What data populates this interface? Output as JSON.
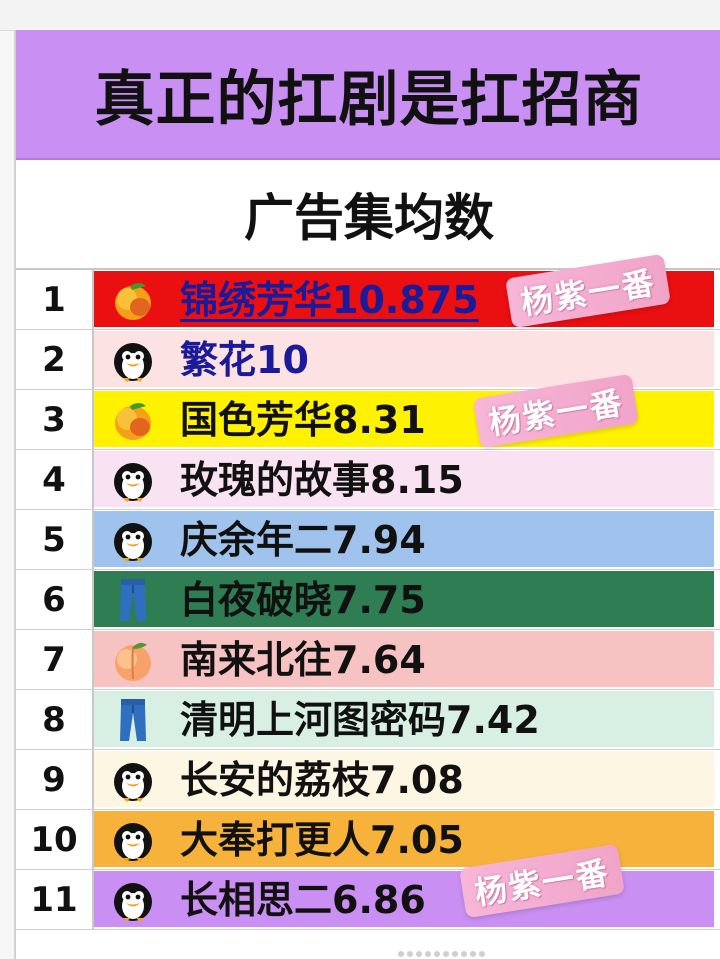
{
  "header": {
    "title": "真正的扛剧是扛招商",
    "subtitle": "广告集均数"
  },
  "sticker_text": "杨紫一番",
  "rows": [
    {
      "rank": "1",
      "label": "锦绣芳华10.875",
      "icon": "mango-icon",
      "bg": "#ea0f10"
    },
    {
      "rank": "2",
      "label": "繁花10",
      "icon": "penguin-icon",
      "bg": "#fde2e4"
    },
    {
      "rank": "3",
      "label": "国色芳华8.31",
      "icon": "mango-icon",
      "bg": "#fff200"
    },
    {
      "rank": "4",
      "label": "玫瑰的故事8.15",
      "icon": "penguin-icon",
      "bg": "#f9e2f1"
    },
    {
      "rank": "5",
      "label": "庆余年二7.94",
      "icon": "penguin-icon",
      "bg": "#9fc3ec"
    },
    {
      "rank": "6",
      "label": "白夜破晓7.75",
      "icon": "jeans-icon",
      "bg": "#2e7d53"
    },
    {
      "rank": "7",
      "label": "南来北往7.64",
      "icon": "peach-icon",
      "bg": "#f6c2c2"
    },
    {
      "rank": "8",
      "label": "清明上河图密码7.42",
      "icon": "jeans-icon",
      "bg": "#d8efe3"
    },
    {
      "rank": "9",
      "label": "长安的荔枝7.08",
      "icon": "penguin-icon",
      "bg": "#fdf6e3"
    },
    {
      "rank": "10",
      "label": "大奉打更人7.05",
      "icon": "penguin-icon",
      "bg": "#f6b23a"
    },
    {
      "rank": "11",
      "label": "长相思二6.86",
      "icon": "penguin-icon",
      "bg": "#c98ff2"
    }
  ]
}
